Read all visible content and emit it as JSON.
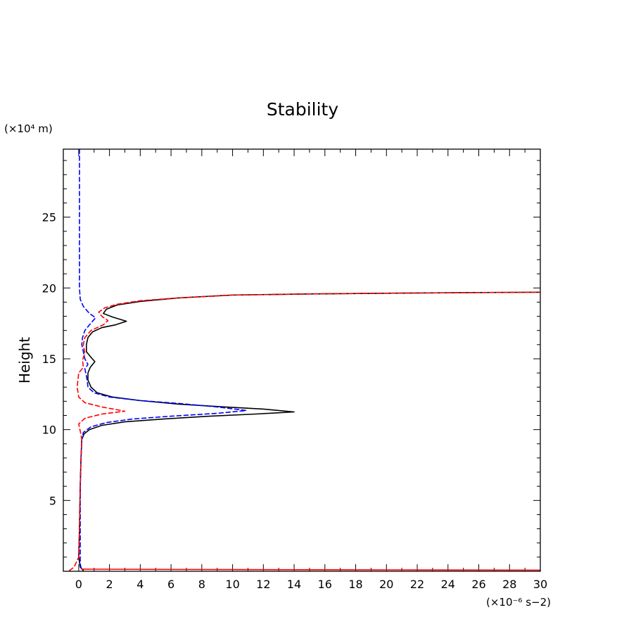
{
  "chart_data": {
    "type": "line",
    "title": "Stability",
    "xlabel": "",
    "ylabel": "Height",
    "x_unit": "(×10⁻⁶ s−2)",
    "y_unit": "(×10⁴ m)",
    "xlim": [
      -1,
      30
    ],
    "ylim": [
      0,
      29.8
    ],
    "x_ticks": [
      0,
      2,
      4,
      6,
      8,
      10,
      12,
      14,
      16,
      18,
      20,
      22,
      24,
      26,
      28,
      30
    ],
    "y_ticks": [
      5,
      10,
      15,
      20,
      25
    ],
    "grid": false,
    "colors": {
      "series1": "#000000",
      "series2": "#0000ff",
      "series3": "#ff0000"
    },
    "series": [
      {
        "style": "solid",
        "color": "#000000",
        "points": [
          [
            0.3,
            0.05
          ],
          [
            0.1,
            0.3
          ],
          [
            0.0,
            1.0
          ],
          [
            0.05,
            3.0
          ],
          [
            0.1,
            6.0
          ],
          [
            0.15,
            8.0
          ],
          [
            0.2,
            9.3
          ],
          [
            0.35,
            9.7
          ],
          [
            0.7,
            10.0
          ],
          [
            1.5,
            10.3
          ],
          [
            3.0,
            10.55
          ],
          [
            5.5,
            10.75
          ],
          [
            8.5,
            10.95
          ],
          [
            11.5,
            11.1
          ],
          [
            14.0,
            11.25
          ],
          [
            12.0,
            11.45
          ],
          [
            9.5,
            11.6
          ],
          [
            6.5,
            11.8
          ],
          [
            4.0,
            12.05
          ],
          [
            2.2,
            12.3
          ],
          [
            1.2,
            12.6
          ],
          [
            0.8,
            13.0
          ],
          [
            0.6,
            13.5
          ],
          [
            0.6,
            14.0
          ],
          [
            0.75,
            14.4
          ],
          [
            1.05,
            14.8
          ],
          [
            0.8,
            15.1
          ],
          [
            0.5,
            15.5
          ],
          [
            0.5,
            16.0
          ],
          [
            0.6,
            16.5
          ],
          [
            0.9,
            16.9
          ],
          [
            1.5,
            17.2
          ],
          [
            2.4,
            17.4
          ],
          [
            3.1,
            17.65
          ],
          [
            2.2,
            17.95
          ],
          [
            1.6,
            18.2
          ],
          [
            1.8,
            18.5
          ],
          [
            2.5,
            18.8
          ],
          [
            4.0,
            19.05
          ],
          [
            6.5,
            19.3
          ],
          [
            10.0,
            19.5
          ],
          [
            15.0,
            19.58
          ],
          [
            20.0,
            19.63
          ],
          [
            25.0,
            19.67
          ],
          [
            30.0,
            19.7
          ]
        ]
      },
      {
        "style": "dashed",
        "color": "#0000ff",
        "points": [
          [
            0.05,
            29.8
          ],
          [
            0.05,
            25.0
          ],
          [
            0.05,
            20.0
          ],
          [
            0.1,
            19.2
          ],
          [
            0.3,
            18.7
          ],
          [
            0.7,
            18.2
          ],
          [
            1.1,
            17.9
          ],
          [
            0.7,
            17.4
          ],
          [
            0.4,
            17.0
          ],
          [
            0.25,
            16.5
          ],
          [
            0.2,
            16.0
          ],
          [
            0.3,
            15.5
          ],
          [
            0.4,
            15.0
          ],
          [
            0.6,
            14.6
          ],
          [
            0.4,
            14.3
          ],
          [
            0.55,
            13.5
          ],
          [
            0.6,
            13.0
          ],
          [
            1.0,
            12.6
          ],
          [
            2.0,
            12.3
          ],
          [
            4.0,
            12.05
          ],
          [
            6.5,
            11.85
          ],
          [
            9.0,
            11.6
          ],
          [
            10.9,
            11.35
          ],
          [
            9.0,
            11.15
          ],
          [
            6.0,
            10.95
          ],
          [
            3.5,
            10.75
          ],
          [
            1.8,
            10.5
          ],
          [
            0.8,
            10.2
          ],
          [
            0.3,
            9.8
          ],
          [
            0.2,
            9.3
          ],
          [
            0.15,
            8.0
          ],
          [
            0.1,
            6.0
          ],
          [
            0.1,
            3.0
          ],
          [
            0.1,
            0.5
          ],
          [
            0.2,
            0.05
          ]
        ]
      },
      {
        "style": "dashed",
        "color": "#ff0000",
        "points": [
          [
            -0.6,
            0.05
          ],
          [
            -0.3,
            0.3
          ],
          [
            0.0,
            1.0
          ],
          [
            0.05,
            3.0
          ],
          [
            0.1,
            6.0
          ],
          [
            0.15,
            8.0
          ],
          [
            0.2,
            9.3
          ],
          [
            0.1,
            9.9
          ],
          [
            0.0,
            10.4
          ],
          [
            0.4,
            10.8
          ],
          [
            1.5,
            11.1
          ],
          [
            3.0,
            11.3
          ],
          [
            1.5,
            11.6
          ],
          [
            0.4,
            11.9
          ],
          [
            0.0,
            12.3
          ],
          [
            -0.1,
            13.0
          ],
          [
            0.0,
            14.0
          ],
          [
            0.3,
            14.4
          ],
          [
            0.25,
            14.9
          ],
          [
            0.4,
            15.4
          ],
          [
            0.3,
            16.0
          ],
          [
            0.4,
            16.5
          ],
          [
            0.8,
            17.0
          ],
          [
            1.6,
            17.4
          ],
          [
            1.9,
            17.7
          ],
          [
            1.5,
            18.0
          ],
          [
            1.3,
            18.3
          ],
          [
            1.7,
            18.6
          ],
          [
            2.5,
            18.85
          ],
          [
            4.0,
            19.1
          ],
          [
            6.5,
            19.3
          ],
          [
            10.0,
            19.5
          ],
          [
            15.0,
            19.58
          ],
          [
            20.0,
            19.63
          ],
          [
            25.0,
            19.67
          ],
          [
            30.0,
            19.7
          ]
        ]
      },
      {
        "style": "solid",
        "color": "#ff0000",
        "points": [
          [
            0.2,
            0.15
          ],
          [
            10.0,
            0.12
          ],
          [
            20.0,
            0.1
          ],
          [
            30.0,
            0.08
          ]
        ]
      }
    ]
  }
}
